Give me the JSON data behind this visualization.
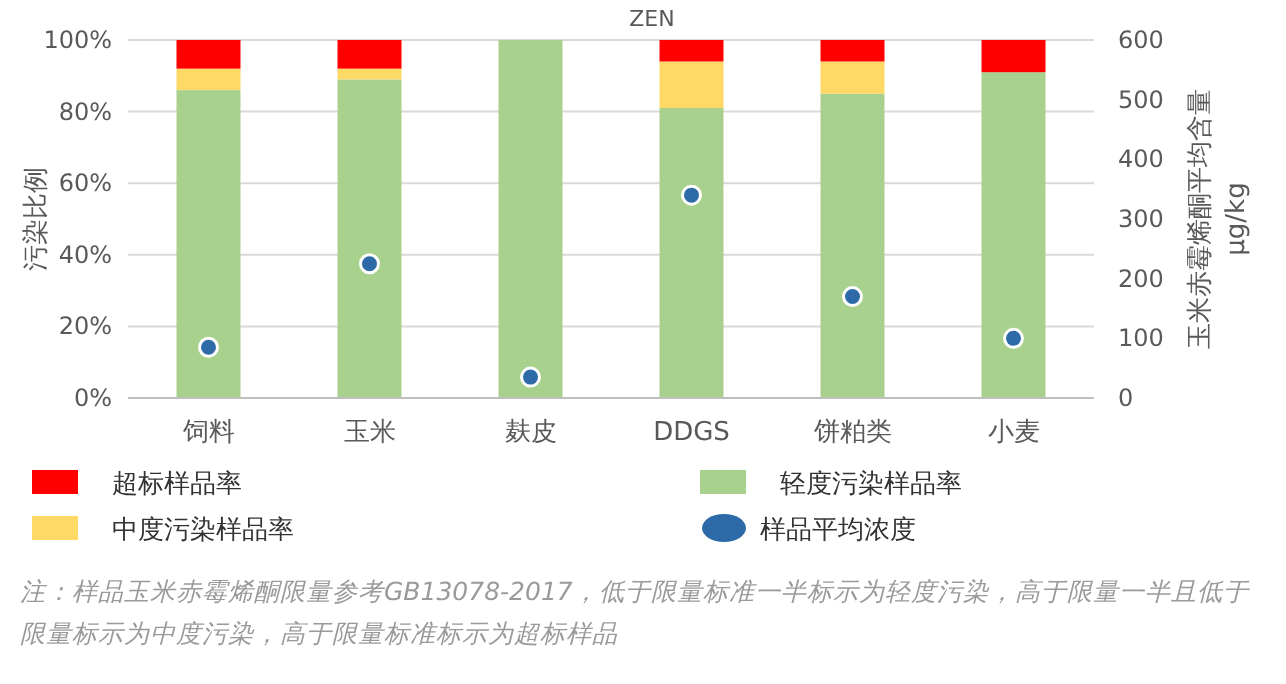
{
  "chart_data": {
    "type": "bar",
    "stacked": true,
    "title": "ZEN",
    "ylabel": "污染比例",
    "y2label": "玉米赤霉烯酮平均含量 μg/kg",
    "categories": [
      "饲料",
      "玉米",
      "麸皮",
      "DDGS",
      "饼粕类",
      "小麦"
    ],
    "series": [
      {
        "name": "轻度污染样品率",
        "color": "#a9d18e",
        "values": [
          86,
          89,
          100,
          81,
          85,
          91
        ]
      },
      {
        "name": "中度污染样品率",
        "color": "#ffd966",
        "values": [
          6,
          3,
          0,
          13,
          9,
          0
        ]
      },
      {
        "name": "超标样品率",
        "color": "#ff0000",
        "values": [
          8,
          8,
          0,
          6,
          6,
          9
        ]
      },
      {
        "name": "样品平均浓度",
        "type": "scatter",
        "axis": "y2",
        "marker": "circle",
        "color": "#2e6aa8",
        "values": [
          85,
          225,
          35,
          340,
          170,
          100
        ]
      }
    ],
    "ylim": [
      0,
      100
    ],
    "yticks": [
      {
        "value": 0,
        "label": "0%"
      },
      {
        "value": 20,
        "label": "20%"
      },
      {
        "value": 40,
        "label": "40%"
      },
      {
        "value": 60,
        "label": "60%"
      },
      {
        "value": 80,
        "label": "80%"
      },
      {
        "value": 100,
        "label": "100%"
      }
    ],
    "y2lim": [
      0,
      600
    ],
    "y2ticks": [
      0,
      100,
      200,
      300,
      400,
      500,
      600
    ],
    "grid": "y",
    "legend": "bottom",
    "annotations": [
      "注：样品玉米赤霉烯酮限量参考GB13078-2017，低于限量标准一半标示为轻度污染，高于限量一半且低于限量标示为中度污染，高于限量标准标示为超标样品"
    ]
  }
}
